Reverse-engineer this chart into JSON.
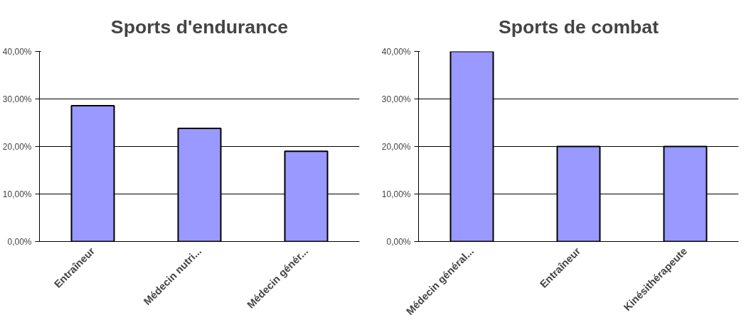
{
  "chart_data": [
    {
      "type": "bar",
      "title": "Sports d'endurance",
      "categories": [
        "Entraîneur",
        "Médecin nutri...",
        "Médecin génér..."
      ],
      "values": [
        28.6,
        23.8,
        19.0
      ],
      "color": "#9999ff",
      "ylim": [
        0,
        40
      ],
      "yticks": [
        {
          "value": 0,
          "label": "0,00%"
        },
        {
          "value": 10,
          "label": "10,00%"
        },
        {
          "value": 20,
          "label": "20,00%"
        },
        {
          "value": 30,
          "label": "30,00%"
        },
        {
          "value": 40,
          "label": "40,00%"
        }
      ],
      "grid": "y"
    },
    {
      "type": "bar",
      "title": "Sports de combat",
      "categories": [
        "Médecin général...",
        "Entraîneur",
        "Kinésithérapeute"
      ],
      "values": [
        40,
        20,
        20
      ],
      "color": "#9999ff",
      "ylim": [
        0,
        40
      ],
      "yticks": [
        {
          "value": 0,
          "label": "0,00%"
        },
        {
          "value": 10,
          "label": "10,00%"
        },
        {
          "value": 20,
          "label": "20,00%"
        },
        {
          "value": 30,
          "label": "30,00%"
        },
        {
          "value": 40,
          "label": "40,00%"
        }
      ],
      "grid": "y"
    }
  ]
}
